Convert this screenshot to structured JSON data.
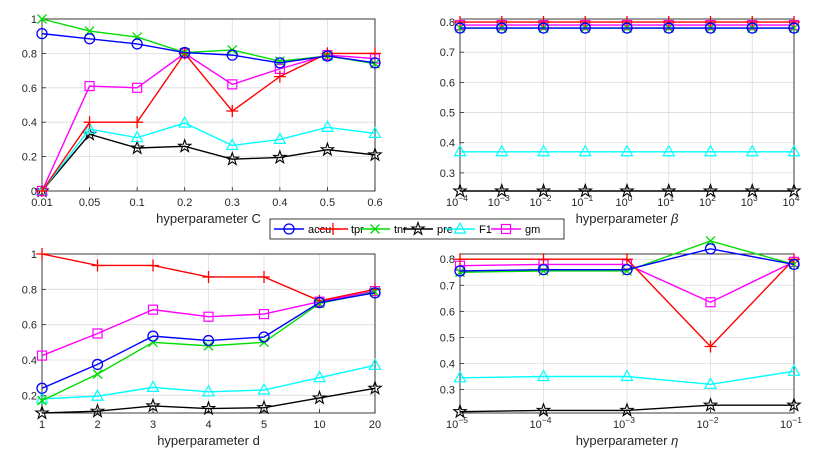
{
  "colors": {
    "accu": "#0000ff",
    "tpr": "#ff0000",
    "tnr": "#00dd00",
    "pre": "#000000",
    "F1": "#00ffff",
    "gm": "#ff00ff"
  },
  "legend": {
    "entries": [
      {
        "key": "accu",
        "label": "accu",
        "marker": "circle"
      },
      {
        "key": "tpr",
        "label": "tpr",
        "marker": "plus"
      },
      {
        "key": "tnr",
        "label": "tnr",
        "marker": "x"
      },
      {
        "key": "pre",
        "label": "pre",
        "marker": "star"
      },
      {
        "key": "F1",
        "label": "F1",
        "marker": "triangle"
      },
      {
        "key": "gm",
        "label": "gm",
        "marker": "square"
      }
    ]
  },
  "chart_data": [
    {
      "type": "line",
      "xlabel": "hyperparameter C",
      "categories": [
        "0.01",
        "0.05",
        "0.1",
        "0.2",
        "0.3",
        "0.4",
        "0.5",
        "0.6"
      ],
      "ylim": [
        0,
        1
      ],
      "yticks": [
        "0",
        "0.2",
        "0.4",
        "0.6",
        "0.8",
        "1"
      ],
      "series": [
        {
          "name": "accu",
          "values": [
            0.915,
            0.885,
            0.855,
            0.805,
            0.79,
            0.745,
            0.785,
            0.745
          ]
        },
        {
          "name": "tpr",
          "values": [
            0.0,
            0.4,
            0.4,
            0.8,
            0.465,
            0.665,
            0.8,
            0.8
          ]
        },
        {
          "name": "tnr",
          "values": [
            1.0,
            0.93,
            0.895,
            0.805,
            0.82,
            0.755,
            0.785,
            0.74
          ]
        },
        {
          "name": "pre",
          "values": [
            0.0,
            0.33,
            0.25,
            0.26,
            0.185,
            0.195,
            0.24,
            0.21
          ]
        },
        {
          "name": "F1",
          "values": [
            0.0,
            0.36,
            0.31,
            0.395,
            0.265,
            0.3,
            0.37,
            0.335
          ]
        },
        {
          "name": "gm",
          "values": [
            0.0,
            0.61,
            0.6,
            0.8,
            0.62,
            0.71,
            0.79,
            0.77
          ]
        }
      ]
    },
    {
      "type": "line",
      "xlabel": "hyperparameter",
      "xlabel_symbol": "β",
      "categories": [
        "10^-4",
        "10^-3",
        "10^-2",
        "10^-1",
        "10^0",
        "10^1",
        "10^2",
        "10^3",
        "10^4"
      ],
      "xtick_base": "10",
      "xtick_exps": [
        "-4",
        "-3",
        "-2",
        "-1",
        "0",
        "1",
        "2",
        "3",
        "4"
      ],
      "ylim": [
        0.24,
        0.81
      ],
      "yticks": [
        "0.3",
        "0.4",
        "0.5",
        "0.6",
        "0.7",
        "0.8"
      ],
      "series": [
        {
          "name": "accu",
          "values": [
            0.78,
            0.78,
            0.78,
            0.78,
            0.78,
            0.78,
            0.78,
            0.78,
            0.78
          ]
        },
        {
          "name": "tpr",
          "values": [
            0.8,
            0.8,
            0.8,
            0.8,
            0.8,
            0.8,
            0.8,
            0.8,
            0.8
          ]
        },
        {
          "name": "tnr",
          "values": [
            0.78,
            0.78,
            0.78,
            0.78,
            0.78,
            0.78,
            0.78,
            0.78,
            0.78
          ]
        },
        {
          "name": "pre",
          "values": [
            0.24,
            0.24,
            0.24,
            0.24,
            0.24,
            0.24,
            0.24,
            0.24,
            0.24
          ]
        },
        {
          "name": "F1",
          "values": [
            0.37,
            0.37,
            0.37,
            0.37,
            0.37,
            0.37,
            0.37,
            0.37,
            0.37
          ]
        },
        {
          "name": "gm",
          "values": [
            0.79,
            0.79,
            0.79,
            0.79,
            0.79,
            0.79,
            0.79,
            0.79,
            0.79
          ]
        }
      ]
    },
    {
      "type": "line",
      "xlabel": "hyperparameter d",
      "categories": [
        "1",
        "2",
        "3",
        "4",
        "5",
        "10",
        "20"
      ],
      "ylim": [
        0.1,
        1
      ],
      "yticks": [
        "0.2",
        "0.4",
        "0.6",
        "0.8",
        "1"
      ],
      "series": [
        {
          "name": "accu",
          "values": [
            0.24,
            0.375,
            0.535,
            0.51,
            0.53,
            0.725,
            0.78
          ]
        },
        {
          "name": "tpr",
          "values": [
            1.0,
            0.935,
            0.935,
            0.87,
            0.87,
            0.735,
            0.8
          ]
        },
        {
          "name": "tnr",
          "values": [
            0.17,
            0.32,
            0.5,
            0.48,
            0.5,
            0.72,
            0.785
          ]
        },
        {
          "name": "pre",
          "values": [
            0.1,
            0.11,
            0.14,
            0.125,
            0.13,
            0.185,
            0.24
          ]
        },
        {
          "name": "F1",
          "values": [
            0.18,
            0.195,
            0.245,
            0.22,
            0.23,
            0.3,
            0.37
          ]
        },
        {
          "name": "gm",
          "values": [
            0.425,
            0.55,
            0.685,
            0.645,
            0.66,
            0.73,
            0.79
          ]
        }
      ]
    },
    {
      "type": "line",
      "xlabel": "hyperparameter",
      "xlabel_symbol": "η",
      "categories": [
        "10^-5",
        "10^-4",
        "10^-3",
        "10^-2",
        "10^-1"
      ],
      "xtick_base": "10",
      "xtick_exps": [
        "-5",
        "-4",
        "-3",
        "-2",
        "-1"
      ],
      "ylim": [
        0.21,
        0.82
      ],
      "yticks": [
        "0.3",
        "0.4",
        "0.5",
        "0.6",
        "0.7",
        "0.8"
      ],
      "series": [
        {
          "name": "accu",
          "values": [
            0.755,
            0.76,
            0.76,
            0.84,
            0.78
          ]
        },
        {
          "name": "tpr",
          "values": [
            0.8,
            0.8,
            0.8,
            0.465,
            0.8
          ]
        },
        {
          "name": "tnr",
          "values": [
            0.75,
            0.755,
            0.755,
            0.87,
            0.78
          ]
        },
        {
          "name": "pre",
          "values": [
            0.215,
            0.22,
            0.22,
            0.24,
            0.24
          ]
        },
        {
          "name": "F1",
          "values": [
            0.345,
            0.35,
            0.35,
            0.32,
            0.37
          ]
        },
        {
          "name": "gm",
          "values": [
            0.775,
            0.78,
            0.78,
            0.635,
            0.79
          ]
        }
      ]
    }
  ]
}
